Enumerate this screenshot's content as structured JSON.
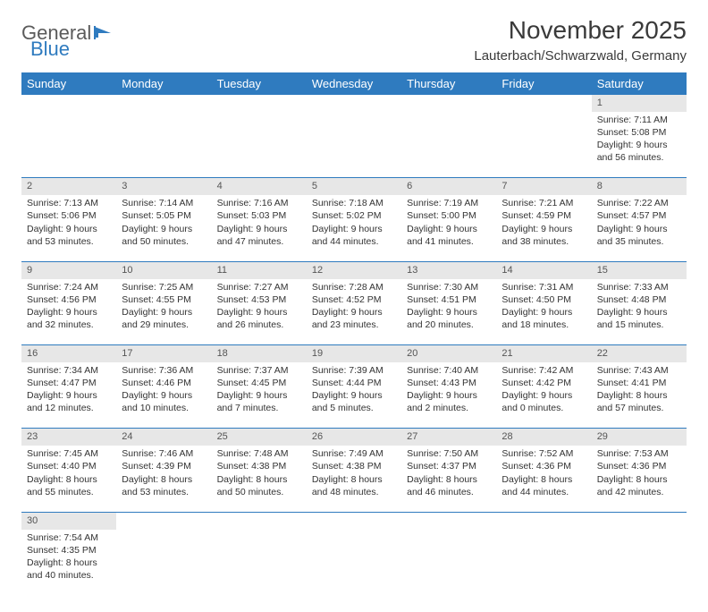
{
  "logo": {
    "part1": "General",
    "part2": "Blue"
  },
  "title": "November 2025",
  "location": "Lauterbach/Schwarzwald, Germany",
  "colors": {
    "header_bg": "#2f7bbf",
    "header_fg": "#ffffff",
    "daynum_bg": "#e7e7e7",
    "border": "#2f7bbf",
    "text": "#333333"
  },
  "weekdays": [
    "Sunday",
    "Monday",
    "Tuesday",
    "Wednesday",
    "Thursday",
    "Friday",
    "Saturday"
  ],
  "weeks": [
    [
      null,
      null,
      null,
      null,
      null,
      null,
      {
        "n": "1",
        "sr": "7:11 AM",
        "ss": "5:08 PM",
        "dl": "9 hours and 56 minutes."
      }
    ],
    [
      {
        "n": "2",
        "sr": "7:13 AM",
        "ss": "5:06 PM",
        "dl": "9 hours and 53 minutes."
      },
      {
        "n": "3",
        "sr": "7:14 AM",
        "ss": "5:05 PM",
        "dl": "9 hours and 50 minutes."
      },
      {
        "n": "4",
        "sr": "7:16 AM",
        "ss": "5:03 PM",
        "dl": "9 hours and 47 minutes."
      },
      {
        "n": "5",
        "sr": "7:18 AM",
        "ss": "5:02 PM",
        "dl": "9 hours and 44 minutes."
      },
      {
        "n": "6",
        "sr": "7:19 AM",
        "ss": "5:00 PM",
        "dl": "9 hours and 41 minutes."
      },
      {
        "n": "7",
        "sr": "7:21 AM",
        "ss": "4:59 PM",
        "dl": "9 hours and 38 minutes."
      },
      {
        "n": "8",
        "sr": "7:22 AM",
        "ss": "4:57 PM",
        "dl": "9 hours and 35 minutes."
      }
    ],
    [
      {
        "n": "9",
        "sr": "7:24 AM",
        "ss": "4:56 PM",
        "dl": "9 hours and 32 minutes."
      },
      {
        "n": "10",
        "sr": "7:25 AM",
        "ss": "4:55 PM",
        "dl": "9 hours and 29 minutes."
      },
      {
        "n": "11",
        "sr": "7:27 AM",
        "ss": "4:53 PM",
        "dl": "9 hours and 26 minutes."
      },
      {
        "n": "12",
        "sr": "7:28 AM",
        "ss": "4:52 PM",
        "dl": "9 hours and 23 minutes."
      },
      {
        "n": "13",
        "sr": "7:30 AM",
        "ss": "4:51 PM",
        "dl": "9 hours and 20 minutes."
      },
      {
        "n": "14",
        "sr": "7:31 AM",
        "ss": "4:50 PM",
        "dl": "9 hours and 18 minutes."
      },
      {
        "n": "15",
        "sr": "7:33 AM",
        "ss": "4:48 PM",
        "dl": "9 hours and 15 minutes."
      }
    ],
    [
      {
        "n": "16",
        "sr": "7:34 AM",
        "ss": "4:47 PM",
        "dl": "9 hours and 12 minutes."
      },
      {
        "n": "17",
        "sr": "7:36 AM",
        "ss": "4:46 PM",
        "dl": "9 hours and 10 minutes."
      },
      {
        "n": "18",
        "sr": "7:37 AM",
        "ss": "4:45 PM",
        "dl": "9 hours and 7 minutes."
      },
      {
        "n": "19",
        "sr": "7:39 AM",
        "ss": "4:44 PM",
        "dl": "9 hours and 5 minutes."
      },
      {
        "n": "20",
        "sr": "7:40 AM",
        "ss": "4:43 PM",
        "dl": "9 hours and 2 minutes."
      },
      {
        "n": "21",
        "sr": "7:42 AM",
        "ss": "4:42 PM",
        "dl": "9 hours and 0 minutes."
      },
      {
        "n": "22",
        "sr": "7:43 AM",
        "ss": "4:41 PM",
        "dl": "8 hours and 57 minutes."
      }
    ],
    [
      {
        "n": "23",
        "sr": "7:45 AM",
        "ss": "4:40 PM",
        "dl": "8 hours and 55 minutes."
      },
      {
        "n": "24",
        "sr": "7:46 AM",
        "ss": "4:39 PM",
        "dl": "8 hours and 53 minutes."
      },
      {
        "n": "25",
        "sr": "7:48 AM",
        "ss": "4:38 PM",
        "dl": "8 hours and 50 minutes."
      },
      {
        "n": "26",
        "sr": "7:49 AM",
        "ss": "4:38 PM",
        "dl": "8 hours and 48 minutes."
      },
      {
        "n": "27",
        "sr": "7:50 AM",
        "ss": "4:37 PM",
        "dl": "8 hours and 46 minutes."
      },
      {
        "n": "28",
        "sr": "7:52 AM",
        "ss": "4:36 PM",
        "dl": "8 hours and 44 minutes."
      },
      {
        "n": "29",
        "sr": "7:53 AM",
        "ss": "4:36 PM",
        "dl": "8 hours and 42 minutes."
      }
    ],
    [
      {
        "n": "30",
        "sr": "7:54 AM",
        "ss": "4:35 PM",
        "dl": "8 hours and 40 minutes."
      },
      null,
      null,
      null,
      null,
      null,
      null
    ]
  ],
  "labels": {
    "sunrise": "Sunrise: ",
    "sunset": "Sunset: ",
    "daylight": "Daylight: "
  }
}
